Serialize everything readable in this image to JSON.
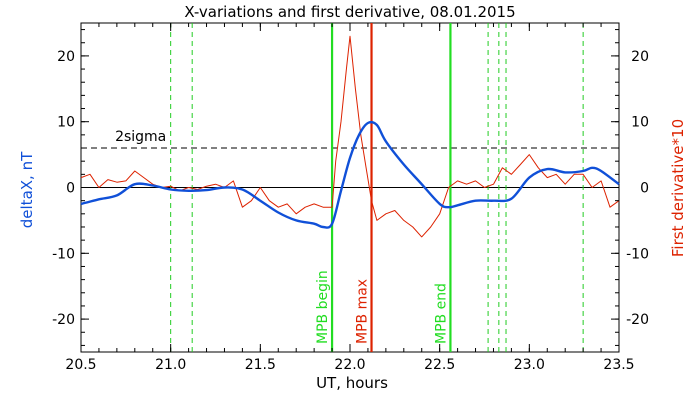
{
  "chart_data": {
    "type": "line",
    "title": "X-variations and first derivative, 08.01.2015",
    "xlabel": "UT, hours",
    "ylabel_left": "deltaX, nT",
    "ylabel_right": "First derivative*10",
    "xlim": [
      20.5,
      23.5
    ],
    "ylim": [
      -25,
      25
    ],
    "x_ticks": [
      "20.5",
      "21.0",
      "21.5",
      "22.0",
      "22.5",
      "23.0",
      "23.5"
    ],
    "y_ticks": [
      "20",
      "10",
      "0",
      "-10",
      "-20"
    ],
    "threshold": {
      "label": "2sigma",
      "value": 6,
      "style": "dashed",
      "color": "#000000"
    },
    "zero_line": {
      "value": 0,
      "color": "#000000"
    },
    "series": [
      {
        "name": "deltaX, nT",
        "color": "#1050d8",
        "axis": "left",
        "x": [
          20.5,
          20.6,
          20.7,
          20.8,
          20.9,
          21.0,
          21.1,
          21.2,
          21.3,
          21.4,
          21.5,
          21.6,
          21.7,
          21.8,
          21.85,
          21.9,
          21.95,
          22.0,
          22.05,
          22.1,
          22.15,
          22.2,
          22.3,
          22.4,
          22.5,
          22.55,
          22.6,
          22.7,
          22.8,
          22.9,
          23.0,
          23.1,
          23.2,
          23.3,
          23.35,
          23.4,
          23.5
        ],
        "y": [
          -2.5,
          -1.8,
          -1.2,
          0.5,
          0.3,
          -0.3,
          -0.5,
          -0.4,
          0.0,
          -0.3,
          -2.0,
          -3.8,
          -5.0,
          -5.5,
          -6.0,
          -5.5,
          -0.5,
          4.5,
          8.0,
          9.8,
          9.5,
          7.0,
          3.5,
          0.5,
          -2.5,
          -3.0,
          -2.7,
          -2.0,
          -2.0,
          -1.7,
          1.5,
          2.8,
          2.3,
          2.5,
          3.0,
          2.5,
          0.5
        ]
      },
      {
        "name": "First derivative*10",
        "color": "#dd2200",
        "axis": "right",
        "x": [
          20.5,
          20.55,
          20.6,
          20.65,
          20.7,
          20.75,
          20.8,
          20.85,
          20.9,
          20.95,
          21.0,
          21.05,
          21.1,
          21.15,
          21.2,
          21.25,
          21.3,
          21.35,
          21.4,
          21.45,
          21.5,
          21.55,
          21.6,
          21.65,
          21.7,
          21.75,
          21.8,
          21.85,
          21.9,
          21.92,
          21.95,
          21.98,
          22.0,
          22.03,
          22.06,
          22.09,
          22.12,
          22.15,
          22.2,
          22.25,
          22.3,
          22.35,
          22.4,
          22.45,
          22.5,
          22.55,
          22.6,
          22.65,
          22.7,
          22.75,
          22.8,
          22.85,
          22.9,
          22.95,
          23.0,
          23.05,
          23.1,
          23.15,
          23.2,
          23.25,
          23.3,
          23.35,
          23.4,
          23.45,
          23.5
        ],
        "y": [
          1.5,
          2.0,
          0.0,
          1.2,
          0.8,
          1.0,
          2.5,
          1.5,
          0.5,
          0.0,
          0.2,
          -0.5,
          0.0,
          -0.3,
          0.2,
          0.5,
          0.0,
          1.0,
          -3.0,
          -2.0,
          0.0,
          -2.0,
          -3.0,
          -2.5,
          -4.0,
          -3.0,
          -2.5,
          -3.0,
          -3.0,
          4.0,
          10.0,
          18.0,
          23.0,
          15.0,
          8.0,
          3.0,
          -2.0,
          -5.0,
          -4.0,
          -3.5,
          -5.0,
          -6.0,
          -7.5,
          -6.0,
          -4.0,
          0.0,
          1.0,
          0.5,
          1.0,
          0.0,
          0.5,
          3.0,
          2.0,
          3.5,
          5.0,
          3.0,
          1.5,
          2.0,
          0.5,
          2.0,
          2.0,
          0.0,
          1.0,
          -3.0,
          -2.0
        ]
      }
    ],
    "markers": [
      {
        "x": 21.0,
        "label": "",
        "color": "#22cc22",
        "style": "dashed"
      },
      {
        "x": 21.12,
        "label": "",
        "color": "#22cc22",
        "style": "dashed"
      },
      {
        "x": 21.9,
        "label": "MPB begin",
        "color": "#22dd22",
        "style": "solid"
      },
      {
        "x": 22.12,
        "label": "MPB max",
        "color": "#dd2200",
        "style": "solid"
      },
      {
        "x": 22.56,
        "label": "MPB end",
        "color": "#22dd22",
        "style": "solid"
      },
      {
        "x": 22.77,
        "label": "",
        "color": "#22cc22",
        "style": "dashed"
      },
      {
        "x": 22.83,
        "label": "",
        "color": "#22cc22",
        "style": "dashed"
      },
      {
        "x": 22.87,
        "label": "",
        "color": "#22cc22",
        "style": "dashed"
      },
      {
        "x": 23.3,
        "label": "",
        "color": "#22cc22",
        "style": "dashed"
      }
    ]
  }
}
